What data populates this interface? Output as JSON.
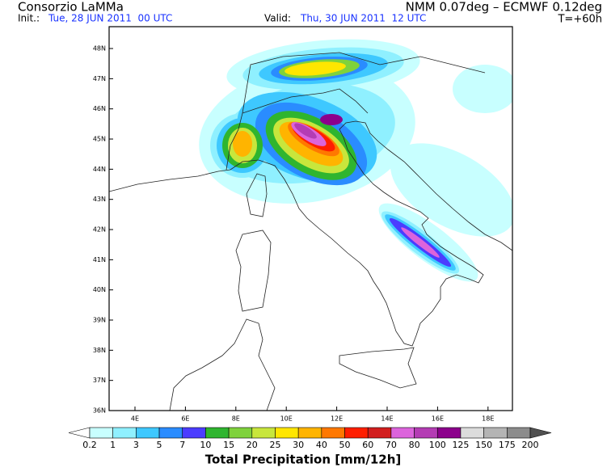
{
  "header": {
    "title": "Consorzio LaMMa",
    "init_label": "Init.:",
    "init": "Tue, 28 JUN 2011  00 UTC",
    "valid_label": "Valid:",
    "valid": "Thu, 30 JUN 2011  12 UTC",
    "model": "NMM 0.07deg – ECMWF 0.12deg",
    "lead": "T=+60h"
  },
  "map": {
    "lat_labels": [
      "36N",
      "37N",
      "38N",
      "39N",
      "40N",
      "41N",
      "42N",
      "43N",
      "44N",
      "45N",
      "46N",
      "47N",
      "48N"
    ],
    "lon_labels": [
      "4E",
      "6E",
      "8E",
      "10E",
      "12E",
      "14E",
      "16E",
      "18E"
    ]
  },
  "colorbar": {
    "labels": [
      "0.2",
      "1",
      "3",
      "5",
      "7",
      "10",
      "15",
      "20",
      "25",
      "30",
      "40",
      "50",
      "60",
      "70",
      "80",
      "100",
      "125",
      "150",
      "175",
      "200"
    ],
    "colors": [
      "#ffffff",
      "#c8ffff",
      "#8ff0ff",
      "#3ec8ff",
      "#2a8cff",
      "#4b3cff",
      "#2fb52f",
      "#7fd23c",
      "#c8e63c",
      "#ffe600",
      "#ffb400",
      "#ff7800",
      "#ff1e00",
      "#d21e1e",
      "#dc64dc",
      "#b43cb4",
      "#8c008c",
      "#dcdcdc",
      "#b4b4b4",
      "#8c8c8c",
      "#505050"
    ],
    "title": "Total Precipitation [mm/12h]"
  }
}
